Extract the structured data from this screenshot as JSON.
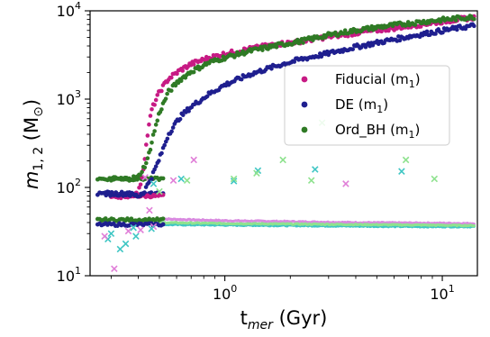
{
  "chart_data": {
    "type": "scatter",
    "title": "",
    "x_scale": "log",
    "y_scale": "log",
    "xlim": [
      0.24,
      14.5
    ],
    "ylim": [
      10,
      10000
    ],
    "xlabel": {
      "main": "t",
      "sub": "mer",
      "rest": " (Gyr)"
    },
    "ylabel": {
      "main": "m",
      "sub": "1, 2",
      "rest": " (M",
      "sun": "⊙",
      "close": ")"
    },
    "x_ticks": [
      {
        "value": 1,
        "base": "10",
        "exp": "0"
      },
      {
        "value": 10,
        "base": "10",
        "exp": "1"
      }
    ],
    "y_ticks": [
      {
        "value": 10,
        "base": "10",
        "exp": "1"
      },
      {
        "value": 100,
        "base": "10",
        "exp": "2"
      },
      {
        "value": 1000,
        "base": "10",
        "exp": "3"
      },
      {
        "value": 10000,
        "base": "10",
        "exp": "4"
      }
    ],
    "legend_position": "center-right",
    "legend": [
      {
        "label": "Fiducial (m",
        "sub": "1",
        "close": ")",
        "color": "#c71a84"
      },
      {
        "label": "DE (m",
        "sub": "1",
        "close": ")",
        "color": "#1f1f8f"
      },
      {
        "label": "Ord_BH (m",
        "sub": "1",
        "close": ")",
        "color": "#2f7a25"
      }
    ],
    "primary_series": [
      {
        "name": "Fiducial (m1)",
        "color": "#c71a84",
        "x": [
          0.3,
          0.35,
          0.4,
          0.42,
          0.44,
          0.46,
          0.5,
          0.55,
          0.62,
          0.7,
          0.85,
          1.0,
          1.3,
          1.7,
          2.2,
          3.0,
          4.0,
          5.5,
          7.0,
          9.0,
          11.0,
          14.0
        ],
        "y": [
          80,
          80,
          85,
          150,
          380,
          750,
          1200,
          1700,
          2100,
          2500,
          2950,
          3250,
          3700,
          4150,
          4500,
          5100,
          5600,
          6200,
          6700,
          7300,
          7800,
          8400
        ]
      },
      {
        "name": "DE (m1)",
        "color": "#1f1f8f",
        "x": [
          0.28,
          0.35,
          0.4,
          0.42,
          0.46,
          0.5,
          0.55,
          0.62,
          0.7,
          0.85,
          1.0,
          1.3,
          1.7,
          2.2,
          3.0,
          4.0,
          5.5,
          7.0,
          9.0,
          11.0,
          14.0
        ],
        "y": [
          85,
          85,
          80,
          85,
          130,
          210,
          400,
          620,
          820,
          1150,
          1450,
          1900,
          2350,
          2800,
          3300,
          3900,
          4550,
          5100,
          5700,
          6200,
          6800
        ]
      },
      {
        "name": "Ord_BH (m1)",
        "color": "#2f7a25",
        "x": [
          0.3,
          0.35,
          0.4,
          0.44,
          0.47,
          0.5,
          0.55,
          0.62,
          0.7,
          0.85,
          1.0,
          1.3,
          1.7,
          2.2,
          3.0,
          4.0,
          5.5,
          7.0,
          9.0,
          11.0,
          14.0
        ],
        "y": [
          125,
          125,
          130,
          200,
          400,
          700,
          1200,
          1650,
          2050,
          2600,
          2950,
          3500,
          4000,
          4500,
          5300,
          6000,
          6700,
          7200,
          7700,
          8100,
          8500
        ]
      }
    ],
    "secondary_series": [
      {
        "name": "Fiducial (m2)",
        "color": "#d98ae0",
        "x": [
          0.5,
          1.0,
          2.0,
          4.0,
          8.0,
          14.0
        ],
        "y": [
          44,
          42,
          41,
          40,
          39.5,
          39
        ]
      },
      {
        "name": "DE (m2)",
        "color": "#3fc6c4",
        "x": [
          0.5,
          1.0,
          2.0,
          4.0,
          8.0,
          14.0
        ],
        "y": [
          38,
          37.5,
          37,
          36.5,
          36,
          36
        ]
      },
      {
        "name": "Ord_BH (m2)",
        "color": "#8fe28f",
        "x": [
          0.5,
          1.0,
          2.0,
          4.0,
          8.0,
          14.0
        ],
        "y": [
          40,
          39,
          38.5,
          38,
          37.5,
          37
        ]
      }
    ],
    "cluster_m1": [
      {
        "color": "#2f7a25",
        "x0": 0.26,
        "x1": 0.52,
        "y": 125
      },
      {
        "color": "#1f1f8f",
        "x0": 0.26,
        "x1": 0.52,
        "y": 85
      },
      {
        "color": "#c71a84",
        "x0": 0.3,
        "x1": 0.52,
        "y": 80
      },
      {
        "color": "#2f7a25",
        "x0": 0.26,
        "x1": 0.52,
        "y": 43
      },
      {
        "color": "#1f1f8f",
        "x0": 0.26,
        "x1": 0.52,
        "y": 38
      }
    ],
    "markers_x": [
      {
        "color": "#e07fd8",
        "x": 0.31,
        "y": 12
      },
      {
        "color": "#3fc6c4",
        "x": 0.33,
        "y": 20
      },
      {
        "color": "#3fc6c4",
        "x": 0.35,
        "y": 23
      },
      {
        "color": "#e07fd8",
        "x": 0.36,
        "y": 32
      },
      {
        "color": "#3fc6c4",
        "x": 0.39,
        "y": 28
      },
      {
        "color": "#e07fd8",
        "x": 0.41,
        "y": 33
      },
      {
        "color": "#e07fd8",
        "x": 0.43,
        "y": 130
      },
      {
        "color": "#e07fd8",
        "x": 0.45,
        "y": 55
      },
      {
        "color": "#3fc6c4",
        "x": 0.47,
        "y": 110
      },
      {
        "color": "#8fe28f",
        "x": 0.5,
        "y": 90
      },
      {
        "color": "#e07fd8",
        "x": 0.58,
        "y": 120
      },
      {
        "color": "#3fc6c4",
        "x": 0.63,
        "y": 125
      },
      {
        "color": "#8fe28f",
        "x": 0.67,
        "y": 120
      },
      {
        "color": "#e07fd8",
        "x": 0.72,
        "y": 205
      },
      {
        "color": "#3fc6c4",
        "x": 1.1,
        "y": 118
      },
      {
        "color": "#8fe28f",
        "x": 1.1,
        "y": 125
      },
      {
        "color": "#3fc6c4",
        "x": 1.42,
        "y": 155
      },
      {
        "color": "#8fe28f",
        "x": 1.4,
        "y": 145
      },
      {
        "color": "#8fe28f",
        "x": 1.85,
        "y": 205
      },
      {
        "color": "#3fc6c4",
        "x": 2.6,
        "y": 160
      },
      {
        "color": "#8fe28f",
        "x": 2.5,
        "y": 120
      },
      {
        "color": "#e07fd8",
        "x": 3.6,
        "y": 110
      },
      {
        "color": "#3fc6c4",
        "x": 6.5,
        "y": 152
      },
      {
        "color": "#8fe28f",
        "x": 6.8,
        "y": 205
      },
      {
        "color": "#8fe28f",
        "x": 9.2,
        "y": 125
      },
      {
        "color": "#3fc6c4",
        "x": 0.29,
        "y": 26
      },
      {
        "color": "#3fc6c4",
        "x": 0.3,
        "y": 30
      },
      {
        "color": "#e07fd8",
        "x": 0.28,
        "y": 28
      },
      {
        "color": "#8fe28f",
        "x": 2.8,
        "y": 540
      },
      {
        "color": "#3fc6c4",
        "x": 0.38,
        "y": 35
      },
      {
        "color": "#e07fd8",
        "x": 0.47,
        "y": 36
      },
      {
        "color": "#3fc6c4",
        "x": 0.46,
        "y": 34
      }
    ]
  }
}
